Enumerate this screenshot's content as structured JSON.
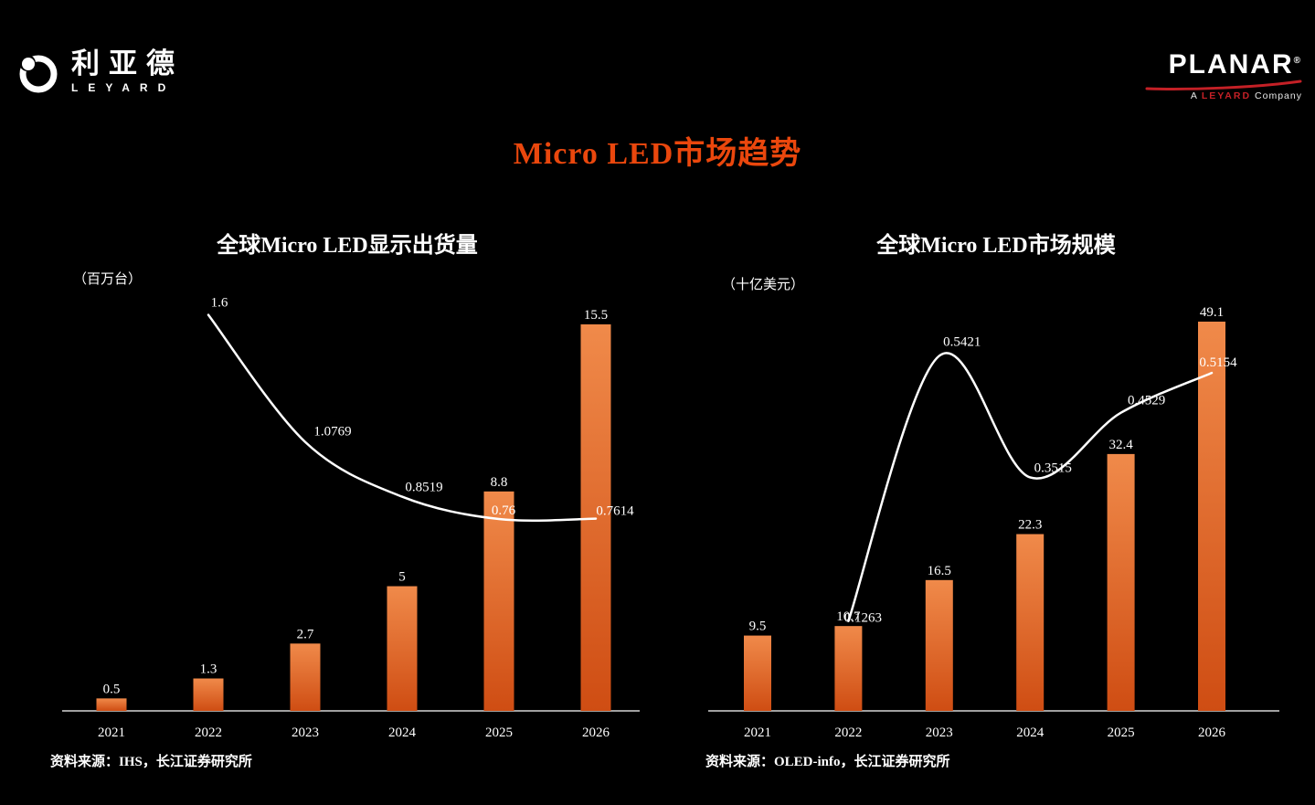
{
  "title": "Micro LED市场趋势",
  "header": {
    "leyard": {
      "cn": "利亚德",
      "en": "LEYARD"
    },
    "planar": {
      "wordmark": "PLANAR",
      "registered": "®",
      "tagline": {
        "prefix": "A",
        "brand": "LEYARD",
        "suffix": "Company"
      }
    }
  },
  "colors": {
    "background": "#000000",
    "title_accent": "#ea470d",
    "bar_gradient_top": "#f08a4a",
    "bar_gradient_bottom": "#cf4d13",
    "trend_line": "#ffffff",
    "planar_red": "#c42026",
    "text": "#ffffff"
  },
  "chart_data": [
    {
      "type": "bar+line",
      "title": "全球Micro LED显示出货量",
      "unit_label": "（百万台）",
      "categories": [
        "2021",
        "2022",
        "2023",
        "2024",
        "2025",
        "2026"
      ],
      "bar_series": {
        "values": [
          0.5,
          1.3,
          2.7,
          5,
          8.8,
          15.5
        ],
        "labels": [
          "0.5",
          "1.3",
          "2.7",
          "5",
          "8.8",
          "15.5"
        ]
      },
      "line_series": {
        "start_index": 1,
        "values": [
          1.6,
          1.0769,
          0.8519,
          0.76,
          0.7614
        ],
        "labels": [
          "1.6",
          "1.0769",
          "0.8519",
          "0.76",
          "0.7614"
        ]
      },
      "bar_axis": {
        "min": 0,
        "max": 15.5
      },
      "line_axis": {
        "min": 0.7,
        "max": 1.7
      },
      "grid": false,
      "legend": false,
      "source": "资料来源：IHS，长江证券研究所"
    },
    {
      "type": "bar+line",
      "title": "全球Micro LED市场规模",
      "unit_label": "（十亿美元）",
      "categories": [
        "2021",
        "2022",
        "2023",
        "2024",
        "2025",
        "2026"
      ],
      "bar_series": {
        "values": [
          9.5,
          10.7,
          16.5,
          22.3,
          32.4,
          49.1
        ],
        "labels": [
          "9.5",
          "10.7",
          "16.5",
          "22.3",
          "32.4",
          "49.1"
        ]
      },
      "line_series": {
        "start_index": 1,
        "values": [
          0.1263,
          0.5421,
          0.3515,
          0.4529,
          0.5154
        ],
        "labels": [
          "0.1263",
          "0.5421",
          "0.3515",
          "0.4529",
          "0.5154"
        ]
      },
      "bar_axis": {
        "min": 0,
        "max": 49.1
      },
      "line_axis": {
        "min": 0.08,
        "max": 0.58
      },
      "grid": false,
      "legend": false,
      "source": "资料来源：OLED-info，长江证券研究所"
    }
  ]
}
